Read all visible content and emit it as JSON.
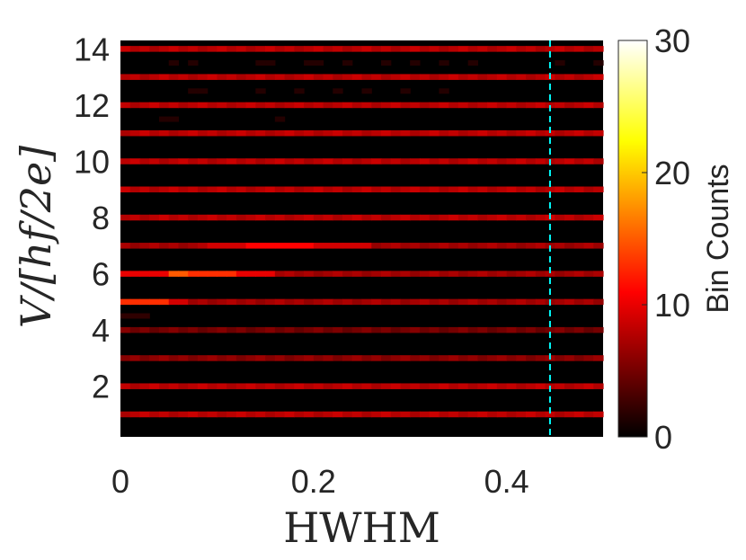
{
  "chart_data": {
    "type": "heatmap",
    "xlabel": "HWHM",
    "ylabel": "V/[hf/2e]",
    "x_ticks": [
      "0",
      "0.2",
      "0.4"
    ],
    "y_ticks": [
      "2",
      "4",
      "6",
      "8",
      "10",
      "12",
      "14"
    ],
    "xlim": [
      0,
      0.5
    ],
    "ylim": [
      0.2,
      14.3
    ],
    "colormap": "hot",
    "colorbar": {
      "label": "Bin Counts",
      "ticks": [
        "0",
        "10",
        "20",
        "30"
      ],
      "range": [
        0,
        30
      ]
    },
    "bin_width": 0.01,
    "rows": [
      {
        "v": 1,
        "base": 8,
        "hot": []
      },
      {
        "v": 2,
        "base": 8,
        "hot": []
      },
      {
        "v": 3,
        "base": 6,
        "hot": []
      },
      {
        "v": 4,
        "base": 5,
        "hot": []
      },
      {
        "v": 5,
        "base": 7,
        "hot": [
          [
            0.0,
            0.05,
            13
          ],
          [
            0.05,
            0.07,
            9
          ]
        ]
      },
      {
        "v": 6,
        "base": 7,
        "hot": [
          [
            0.0,
            0.05,
            10
          ],
          [
            0.05,
            0.07,
            15
          ],
          [
            0.07,
            0.12,
            13
          ],
          [
            0.12,
            0.16,
            10
          ]
        ]
      },
      {
        "v": 7,
        "base": 7,
        "hot": [
          [
            0.09,
            0.13,
            9
          ],
          [
            0.13,
            0.2,
            11
          ],
          [
            0.2,
            0.26,
            9
          ]
        ]
      },
      {
        "v": 8,
        "base": 8,
        "hot": []
      },
      {
        "v": 9,
        "base": 8,
        "hot": []
      },
      {
        "v": 10,
        "base": 8,
        "hot": []
      },
      {
        "v": 11,
        "base": 8,
        "hot": []
      },
      {
        "v": 12,
        "base": 8,
        "hot": []
      },
      {
        "v": 13,
        "base": 8,
        "hot": []
      },
      {
        "v": 14,
        "base": 8,
        "hot": []
      }
    ],
    "faint_rows": [
      {
        "v": 13.5,
        "value": 1.5,
        "xs": [
          0.05,
          0.07,
          0.14,
          0.15,
          0.19,
          0.2,
          0.23,
          0.27,
          0.3,
          0.33,
          0.36,
          0.45,
          0.49
        ]
      },
      {
        "v": 12.5,
        "value": 1.5,
        "xs": [
          0.07,
          0.08,
          0.14,
          0.18,
          0.22,
          0.25,
          0.29,
          0.33
        ]
      },
      {
        "v": 11.5,
        "value": 1.5,
        "xs": [
          0.04,
          0.05,
          0.16
        ]
      },
      {
        "v": 4.5,
        "value": 2,
        "xs": [
          0.0,
          0.01,
          0.02
        ]
      }
    ],
    "reference_line": {
      "x": 0.445,
      "color": "#00ffff",
      "style": "dashed"
    }
  }
}
